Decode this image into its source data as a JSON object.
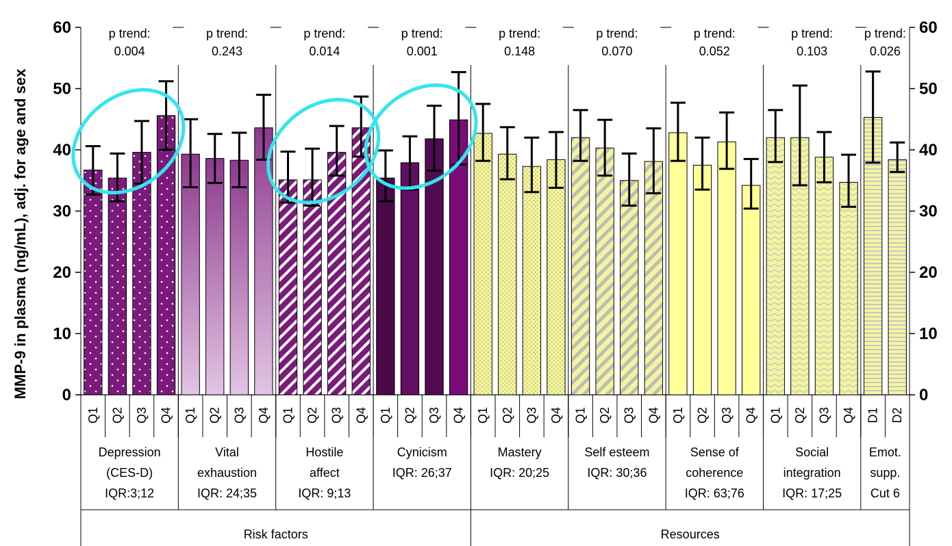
{
  "chart_data": {
    "type": "bar",
    "ylabel": "MMP-9 in plasma (ng/mL), adj. for age and sex",
    "ylim": [
      0,
      60
    ],
    "yticks": [
      "0",
      "10",
      "20",
      "30",
      "40",
      "50",
      "60"
    ],
    "grid": false,
    "error_bars": true,
    "groups": [
      {
        "name": [
          "Depression",
          "(CES-D)",
          "IQR:3;12"
        ],
        "p_trend": [
          "p trend:",
          "0.004"
        ],
        "supergroup": 0,
        "fill": "#7b1a7b",
        "pattern": "dots",
        "highlight": true,
        "bars": [
          {
            "label": "Q1",
            "value": 36.7,
            "low": 32.7,
            "high": 40.6
          },
          {
            "label": "Q2",
            "value": 35.4,
            "low": 31.6,
            "high": 39.4
          },
          {
            "label": "Q3",
            "value": 39.6,
            "low": 34.5,
            "high": 44.7
          },
          {
            "label": "Q4",
            "value": 45.6,
            "low": 40.0,
            "high": 51.2
          }
        ]
      },
      {
        "name": [
          "Vital",
          "exhaustion",
          "IQR: 24;35"
        ],
        "p_trend": [
          "p trend:",
          "0.243"
        ],
        "supergroup": 0,
        "fill": "#a767a7",
        "pattern": "gradient",
        "highlight": false,
        "bars": [
          {
            "label": "Q1",
            "value": 39.3,
            "low": 33.9,
            "high": 45.0
          },
          {
            "label": "Q2",
            "value": 38.6,
            "low": 34.6,
            "high": 42.6
          },
          {
            "label": "Q3",
            "value": 38.3,
            "low": 33.9,
            "high": 42.8
          },
          {
            "label": "Q4",
            "value": 43.6,
            "low": 38.4,
            "high": 49.0
          }
        ]
      },
      {
        "name": [
          "Hostile",
          "affect",
          "IQR: 9;13"
        ],
        "p_trend": [
          "p trend:",
          "0.014"
        ],
        "supergroup": 0,
        "fill": "#7b1a7b",
        "pattern": "diagonal",
        "highlight": true,
        "bars": [
          {
            "label": "Q1",
            "value": 35.1,
            "low": 31.4,
            "high": 39.7
          },
          {
            "label": "Q2",
            "value": 35.1,
            "low": 30.9,
            "high": 40.2
          },
          {
            "label": "Q3",
            "value": 39.6,
            "low": 35.8,
            "high": 43.9
          },
          {
            "label": "Q4",
            "value": 43.6,
            "low": 38.9,
            "high": 48.7
          }
        ]
      },
      {
        "name": [
          "Cynicism",
          "IQR: 26;37"
        ],
        "p_trend": [
          "p trend:",
          "0.001"
        ],
        "supergroup": 0,
        "fill": "#4a0a4a",
        "pattern": "shades",
        "highlight": true,
        "bars": [
          {
            "label": "Q1",
            "value": 35.4,
            "low": 31.6,
            "high": 39.9
          },
          {
            "label": "Q2",
            "value": 37.9,
            "low": 33.5,
            "high": 42.2
          },
          {
            "label": "Q3",
            "value": 41.8,
            "low": 36.6,
            "high": 47.2
          },
          {
            "label": "Q4",
            "value": 44.9,
            "low": 37.6,
            "high": 52.7
          }
        ]
      },
      {
        "name": [
          "Mastery",
          "IQR: 20;25"
        ],
        "p_trend": [
          "p trend:",
          "0.148"
        ],
        "supergroup": 1,
        "fill": "#f2f29a",
        "pattern": "fine-dots",
        "highlight": false,
        "bars": [
          {
            "label": "Q1",
            "value": 42.7,
            "low": 38.2,
            "high": 47.5
          },
          {
            "label": "Q2",
            "value": 39.3,
            "low": 35.2,
            "high": 43.7
          },
          {
            "label": "Q3",
            "value": 37.3,
            "low": 33.1,
            "high": 42.0
          },
          {
            "label": "Q4",
            "value": 38.4,
            "low": 33.8,
            "high": 42.9
          }
        ]
      },
      {
        "name": [
          "Self esteem",
          "IQR: 30;36"
        ],
        "p_trend": [
          "p trend:",
          "0.070"
        ],
        "supergroup": 1,
        "fill": "#f2f29a",
        "pattern": "gray-diagonal",
        "highlight": false,
        "bars": [
          {
            "label": "Q1",
            "value": 42.0,
            "low": 38.2,
            "high": 46.5
          },
          {
            "label": "Q2",
            "value": 40.3,
            "low": 35.8,
            "high": 44.9
          },
          {
            "label": "Q3",
            "value": 35.0,
            "low": 30.9,
            "high": 39.4
          },
          {
            "label": "Q4",
            "value": 38.1,
            "low": 32.9,
            "high": 43.5
          }
        ]
      },
      {
        "name": [
          "Sense of",
          "coherence",
          "IQR: 63;76"
        ],
        "p_trend": [
          "p trend:",
          "0.052"
        ],
        "supergroup": 1,
        "fill": "#ffff99",
        "pattern": "solid",
        "highlight": false,
        "bars": [
          {
            "label": "Q1",
            "value": 42.8,
            "low": 38.2,
            "high": 47.7
          },
          {
            "label": "Q2",
            "value": 37.5,
            "low": 33.5,
            "high": 42.0
          },
          {
            "label": "Q3",
            "value": 41.3,
            "low": 36.9,
            "high": 46.1
          },
          {
            "label": "Q4",
            "value": 34.2,
            "low": 30.4,
            "high": 38.5
          }
        ]
      },
      {
        "name": [
          "Social",
          "integration",
          "IQR: 17;25"
        ],
        "p_trend": [
          "p trend:",
          "0.103"
        ],
        "supergroup": 1,
        "fill": "#f2f29a",
        "pattern": "waves",
        "highlight": false,
        "bars": [
          {
            "label": "Q1",
            "value": 42.0,
            "low": 38.0,
            "high": 46.5
          },
          {
            "label": "Q2",
            "value": 42.0,
            "low": 34.2,
            "high": 50.5
          },
          {
            "label": "Q3",
            "value": 38.8,
            "low": 34.7,
            "high": 42.9
          },
          {
            "label": "Q4",
            "value": 34.7,
            "low": 30.7,
            "high": 39.2
          }
        ]
      },
      {
        "name": [
          "Emot.",
          "supp.",
          "Cut 6"
        ],
        "p_trend": [
          "p trend:",
          "0.026"
        ],
        "supergroup": 1,
        "fill": "#f2f29a",
        "pattern": "h-stripes",
        "highlight": false,
        "bars": [
          {
            "label": "D1",
            "value": 45.3,
            "low": 37.9,
            "high": 52.8
          },
          {
            "label": "D2",
            "value": 38.4,
            "low": 36.4,
            "high": 41.2
          }
        ]
      }
    ],
    "supergroups": [
      "Risk factors",
      "Resources"
    ],
    "highlight_color": "#33e5ee"
  }
}
